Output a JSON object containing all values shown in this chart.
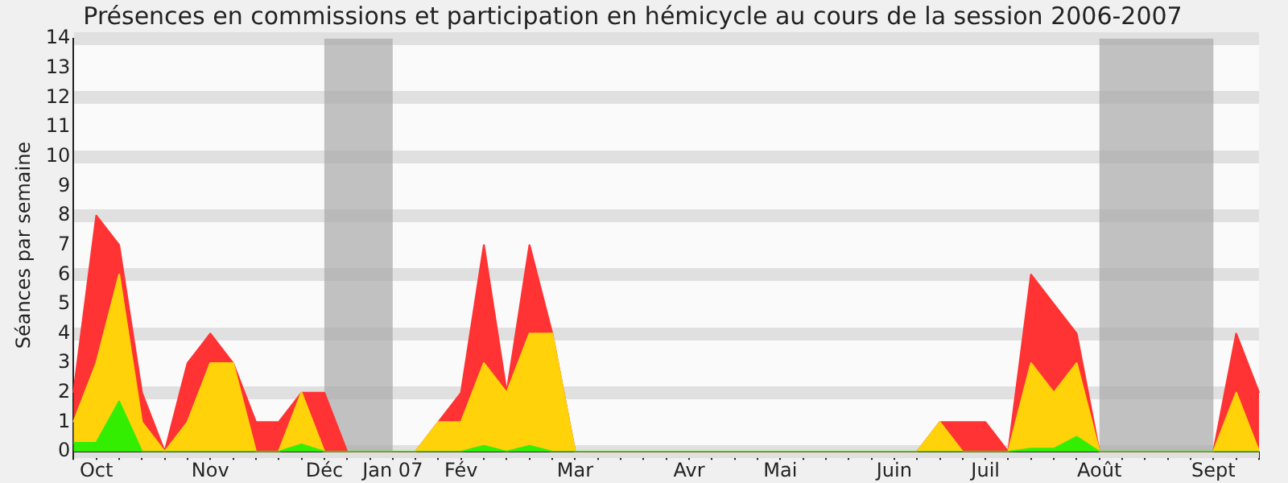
{
  "chart_data": {
    "type": "area",
    "stacked": true,
    "title": "Présences en commissions et participation en hémicycle au cours de la session 2006-2007",
    "ylabel": "Séances par semaine",
    "categories": [
      null,
      "Oct",
      null,
      null,
      null,
      null,
      "Nov",
      null,
      null,
      null,
      null,
      "Déc",
      null,
      null,
      "Jan 07",
      null,
      null,
      "Fév",
      null,
      null,
      null,
      null,
      "Mar",
      null,
      null,
      null,
      null,
      "Avr",
      null,
      null,
      null,
      "Mai",
      null,
      null,
      null,
      null,
      "Juin",
      null,
      null,
      null,
      "Juil",
      null,
      null,
      null,
      null,
      "Août",
      null,
      null,
      null,
      null,
      "Sept",
      null,
      null
    ],
    "series": [
      {
        "color": "#33ee00",
        "values": [
          0.3,
          0.3,
          1.7,
          0,
          0,
          0,
          0,
          0,
          0,
          0,
          0.25,
          0,
          0,
          0,
          0,
          0,
          0,
          0,
          0.2,
          0,
          0.2,
          0,
          0,
          0,
          0,
          0,
          0,
          0,
          0,
          0,
          0,
          0,
          0,
          0,
          0,
          0,
          0,
          0,
          0,
          0,
          0,
          0,
          0.1,
          0.1,
          0.5,
          0,
          0,
          0,
          0,
          0,
          0,
          0,
          0
        ]
      },
      {
        "color": "#ffd20a",
        "values": [
          0.7,
          2.7,
          4.3,
          1,
          0,
          1,
          3,
          3,
          0,
          0,
          1.75,
          0,
          0,
          0,
          0,
          0,
          1,
          1,
          2.8,
          2,
          3.8,
          4,
          0,
          0,
          0,
          0,
          0,
          0,
          0,
          0,
          0,
          0,
          0,
          0,
          0,
          0,
          0,
          0,
          1,
          0,
          0,
          0,
          2.9,
          1.9,
          2.5,
          0,
          0,
          0,
          0,
          0,
          0,
          2,
          0
        ]
      },
      {
        "color": "#ff3333",
        "values": [
          1,
          5,
          1,
          1,
          0,
          2,
          1,
          0,
          1,
          1,
          0,
          2,
          0,
          0,
          0,
          0,
          0,
          1,
          4,
          0,
          3,
          0,
          0,
          0,
          0,
          0,
          0,
          0,
          0,
          0,
          0,
          0,
          0,
          0,
          0,
          0,
          0,
          0,
          0,
          1,
          1,
          0,
          3,
          3,
          1,
          0,
          0,
          0,
          0,
          0,
          0,
          2,
          2
        ]
      }
    ],
    "ylim": [
      0,
      14
    ],
    "yticks": [
      0,
      1,
      2,
      3,
      4,
      5,
      6,
      7,
      8,
      9,
      10,
      11,
      12,
      13,
      14
    ],
    "grid": "y",
    "legend": false,
    "bands": [
      {
        "axis": "x",
        "from": "Déc",
        "to": "Jan 07",
        "color": "#a8a8a8"
      },
      {
        "axis": "x",
        "from": "Août",
        "to": "Sept",
        "color": "#a8a8a8"
      }
    ]
  }
}
